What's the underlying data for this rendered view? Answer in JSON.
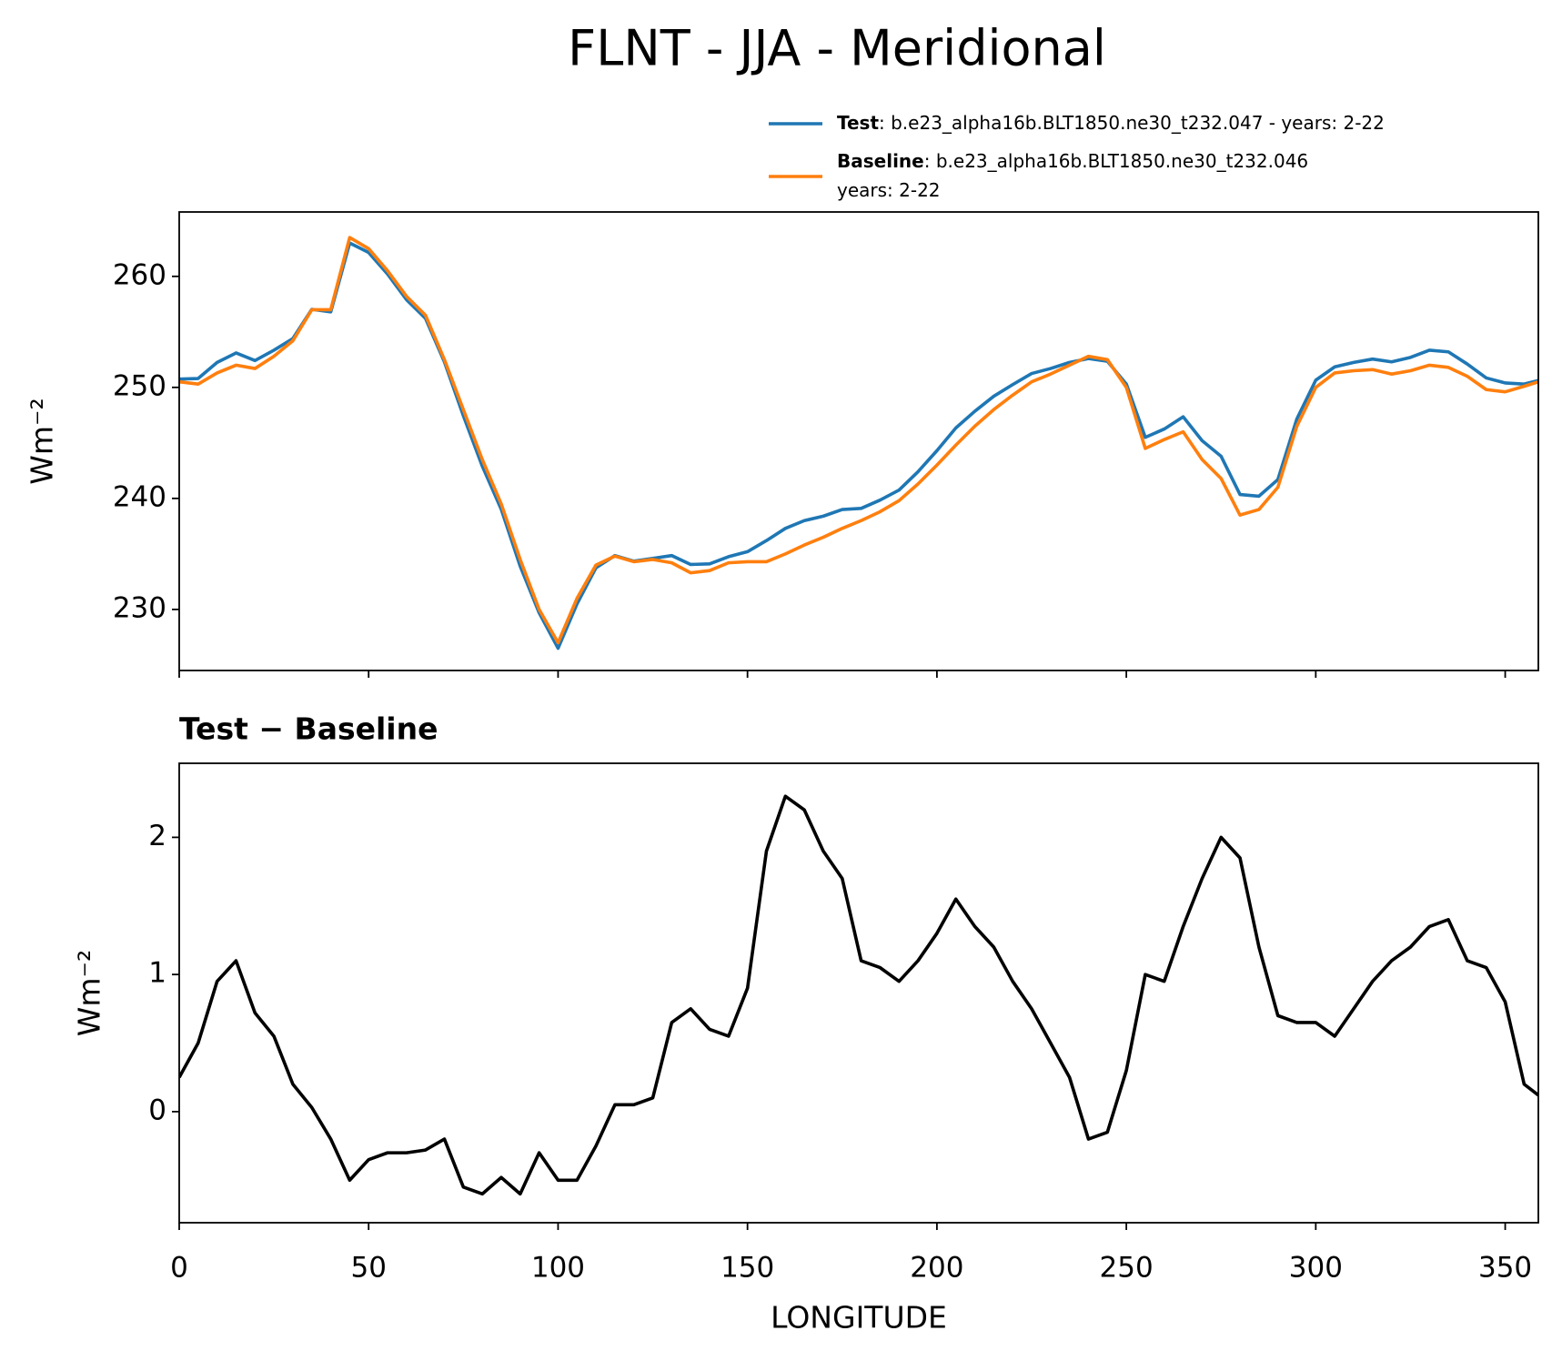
{
  "title": "FLNT - JJA - Meridional",
  "chart_data": [
    {
      "type": "line",
      "x": [
        0,
        5,
        10,
        15,
        20,
        25,
        30,
        35,
        40,
        45,
        50,
        55,
        60,
        65,
        70,
        75,
        80,
        85,
        90,
        95,
        100,
        105,
        110,
        115,
        120,
        125,
        130,
        135,
        140,
        145,
        150,
        155,
        160,
        165,
        170,
        175,
        180,
        185,
        190,
        195,
        200,
        205,
        210,
        215,
        220,
        225,
        230,
        235,
        240,
        245,
        250,
        255,
        260,
        265,
        270,
        275,
        280,
        285,
        290,
        295,
        300,
        305,
        310,
        315,
        320,
        325,
        330,
        335,
        340,
        345,
        350,
        355,
        358.75
      ],
      "series": [
        {
          "name": "Test",
          "description": [
            ": b.e23_alpha16b.BLT1850.ne30_t232.047 - years: 2-22"
          ],
          "color": "#1f77b4",
          "values": [
            250.75,
            250.8,
            252.25,
            253.1,
            252.42,
            253.35,
            254.4,
            257.03,
            256.8,
            263.0,
            262.15,
            260.2,
            257.9,
            256.22,
            252.3,
            247.45,
            242.9,
            239.02,
            233.9,
            229.7,
            226.5,
            230.5,
            233.75,
            234.85,
            234.35,
            234.6,
            234.85,
            234.05,
            234.1,
            234.75,
            235.2,
            236.2,
            237.3,
            238.0,
            238.4,
            239.0,
            239.1,
            239.85,
            240.75,
            242.4,
            244.3,
            246.35,
            247.85,
            249.2,
            250.25,
            251.25,
            251.7,
            252.25,
            252.6,
            252.35,
            250.3,
            245.5,
            246.25,
            247.35,
            245.2,
            243.8,
            240.35,
            240.2,
            241.7,
            247.15,
            250.65,
            251.85,
            252.25,
            252.55,
            252.3,
            252.7,
            253.35,
            253.2,
            252.1,
            250.85,
            250.4,
            250.3,
            250.62
          ]
        },
        {
          "name": "Baseline",
          "description": [
            ": b.e23_alpha16b.BLT1850.ne30_t232.046",
            "years: 2-22"
          ],
          "color": "#ff7f0e",
          "values": [
            250.5,
            250.3,
            251.3,
            252.0,
            251.7,
            252.8,
            254.2,
            257.0,
            257.0,
            263.5,
            262.5,
            260.5,
            258.2,
            256.5,
            252.5,
            248.0,
            243.5,
            239.5,
            234.5,
            230.0,
            227.0,
            231.0,
            234.0,
            234.8,
            234.3,
            234.5,
            234.2,
            233.3,
            233.5,
            234.2,
            234.3,
            234.3,
            235.0,
            235.8,
            236.5,
            237.3,
            238.0,
            238.8,
            239.8,
            241.3,
            243.0,
            244.8,
            246.5,
            248.0,
            249.3,
            250.5,
            251.2,
            252.0,
            252.8,
            252.5,
            250.0,
            244.5,
            245.3,
            246.0,
            243.5,
            241.8,
            238.5,
            239.0,
            241.0,
            246.5,
            250.0,
            251.3,
            251.5,
            251.6,
            251.2,
            251.5,
            252.0,
            251.8,
            251.0,
            249.8,
            249.6,
            250.1,
            250.5
          ]
        }
      ],
      "xlim": [
        0,
        358.75
      ],
      "xticks": [
        0,
        50,
        100,
        150,
        200,
        250,
        300,
        350
      ],
      "show_xtick_labels": false,
      "ylim": [
        224.5,
        265.8
      ],
      "yticks": [
        230,
        240,
        250,
        260
      ],
      "ylabel": "Wm⁻²",
      "legend": true
    },
    {
      "type": "line",
      "title": "Test − Baseline",
      "x": [
        0,
        5,
        10,
        15,
        20,
        25,
        30,
        35,
        40,
        45,
        50,
        55,
        60,
        65,
        70,
        75,
        80,
        85,
        90,
        95,
        100,
        105,
        110,
        115,
        120,
        125,
        130,
        135,
        140,
        145,
        150,
        155,
        160,
        165,
        170,
        175,
        180,
        185,
        190,
        195,
        200,
        205,
        210,
        215,
        220,
        225,
        230,
        235,
        240,
        245,
        250,
        255,
        260,
        265,
        270,
        275,
        280,
        285,
        290,
        295,
        300,
        305,
        310,
        315,
        320,
        325,
        330,
        335,
        340,
        345,
        350,
        355,
        358.75
      ],
      "series": [
        {
          "color": "#000000",
          "values": [
            0.25,
            0.5,
            0.95,
            1.1,
            0.72,
            0.55,
            0.2,
            0.03,
            -0.2,
            -0.5,
            -0.35,
            -0.3,
            -0.3,
            -0.28,
            -0.2,
            -0.55,
            -0.6,
            -0.48,
            -0.6,
            -0.3,
            -0.5,
            -0.5,
            -0.25,
            0.05,
            0.05,
            0.1,
            0.65,
            0.75,
            0.6,
            0.55,
            0.9,
            1.9,
            2.3,
            2.2,
            1.9,
            1.7,
            1.1,
            1.05,
            0.95,
            1.1,
            1.3,
            1.55,
            1.35,
            1.2,
            0.95,
            0.75,
            0.5,
            0.25,
            -0.2,
            -0.15,
            0.3,
            1.0,
            0.95,
            1.35,
            1.7,
            2.0,
            1.85,
            1.2,
            0.7,
            0.65,
            0.65,
            0.55,
            0.75,
            0.95,
            1.1,
            1.2,
            1.35,
            1.4,
            1.1,
            1.05,
            0.8,
            0.2,
            0.12
          ]
        }
      ],
      "xlim": [
        0,
        358.75
      ],
      "xticks": [
        0,
        50,
        100,
        150,
        200,
        250,
        300,
        350
      ],
      "show_xtick_labels": true,
      "xlabel": "LONGITUDE",
      "ylim": [
        -0.81,
        2.54
      ],
      "yticks": [
        0,
        1,
        2
      ],
      "ylabel": "Wm⁻²",
      "legend": false
    }
  ]
}
